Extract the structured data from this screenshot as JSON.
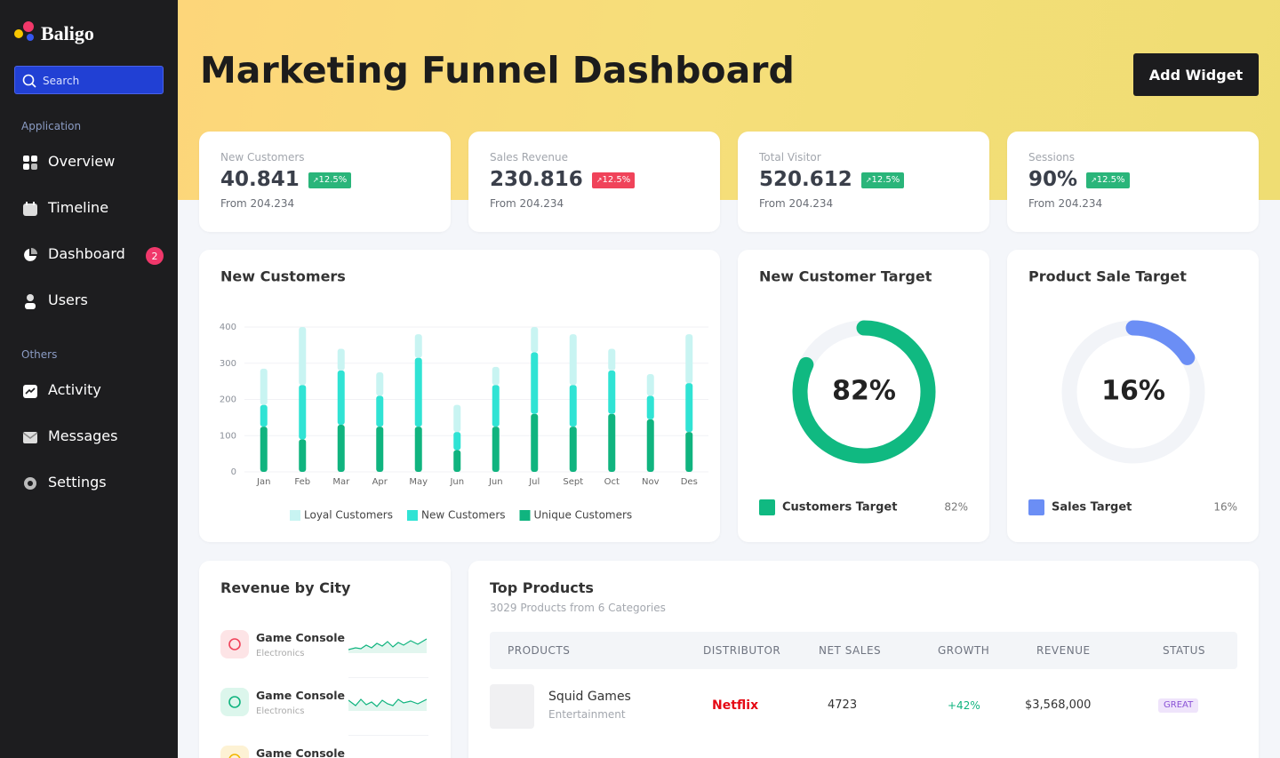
{
  "sidebar": {
    "brand": "Baligo",
    "search": "Search",
    "sections": [
      {
        "title": "Application",
        "items": [
          {
            "label": "Overview"
          },
          {
            "label": "Timeline"
          },
          {
            "label": "Dashboard",
            "badge": 2
          },
          {
            "label": "Users"
          }
        ]
      },
      {
        "title": "Others",
        "items": [
          {
            "label": "Activity"
          },
          {
            "label": "Messages"
          },
          {
            "label": "Settings"
          }
        ]
      }
    ]
  },
  "header": {
    "title": "Marketing Funnel Dashboard",
    "button": "Add Widget"
  },
  "stats": [
    {
      "label": "New Customers",
      "value": "40.841",
      "change": "12.5%",
      "trend": "up",
      "from": "From 204.234"
    },
    {
      "label": "Sales Revenue",
      "value": "230.816",
      "change": "12.5%",
      "trend": "down",
      "from": "From 204.234"
    },
    {
      "label": "Total Visitor",
      "value": "520.612",
      "change": "12.5%",
      "trend": "up",
      "from": "From 204.234"
    },
    {
      "label": "Sessions",
      "value": "90%",
      "change": "12.5%",
      "trend": "up",
      "from": "From 204.234"
    }
  ],
  "chart_data": [
    {
      "type": "bar",
      "stacked": true,
      "title": "New Customers",
      "categories": [
        "Jan",
        "Feb",
        "Mar",
        "Apr",
        "May",
        "Jun",
        "Jun",
        "Jul",
        "Sept",
        "Oct",
        "Nov",
        "Des"
      ],
      "series": [
        {
          "name": "Loyal Customers",
          "color": "#c8f4f2",
          "values": [
            100,
            160,
            60,
            65,
            65,
            75,
            50,
            70,
            140,
            60,
            60,
            135
          ]
        },
        {
          "name": "New Customers",
          "color": "#30e3d4",
          "values": [
            60,
            150,
            150,
            85,
            190,
            50,
            115,
            170,
            115,
            120,
            65,
            135
          ]
        },
        {
          "name": "Unique Customers",
          "color": "#10b47f",
          "values": [
            125,
            90,
            130,
            125,
            125,
            60,
            125,
            160,
            125,
            160,
            145,
            110
          ]
        }
      ],
      "ylim": [
        0,
        400
      ],
      "yticks": [
        0,
        100,
        200,
        300,
        400
      ],
      "grid": true
    },
    {
      "type": "donut",
      "title": "New Customer Target",
      "categories": [
        "Customers Target"
      ],
      "values": [
        82
      ],
      "value_labels": [
        "82%"
      ],
      "color": "#10b981",
      "ylim": [
        0,
        100
      ]
    },
    {
      "type": "donut",
      "title": "Product Sale Target",
      "categories": [
        "Sales Target"
      ],
      "values": [
        16
      ],
      "value_labels": [
        "16%"
      ],
      "color": "#6b8ef5",
      "ylim": [
        0,
        100
      ]
    }
  ],
  "revenue_by_city": {
    "title": "Revenue by City",
    "items": [
      {
        "name": "Game Console",
        "category": "Electronics"
      },
      {
        "name": "Game Console",
        "category": "Electronics"
      },
      {
        "name": "Game Console"
      }
    ]
  },
  "top_products": {
    "title": "Top Products",
    "subtitle": "3029 Products from 6 Categories",
    "table": {
      "headers": [
        "PRODUCTS",
        "DISTRIBUTOR",
        "NET SALES",
        "GROWTH",
        "REVENUE",
        "STATUS"
      ],
      "rows": [
        {
          "name": "Squid Games",
          "category": "Entertainment",
          "distributor": "Netflix",
          "net_sales": "4723",
          "growth": "+42%",
          "revenue": "$3,568,000",
          "status": "GREAT"
        }
      ]
    }
  }
}
